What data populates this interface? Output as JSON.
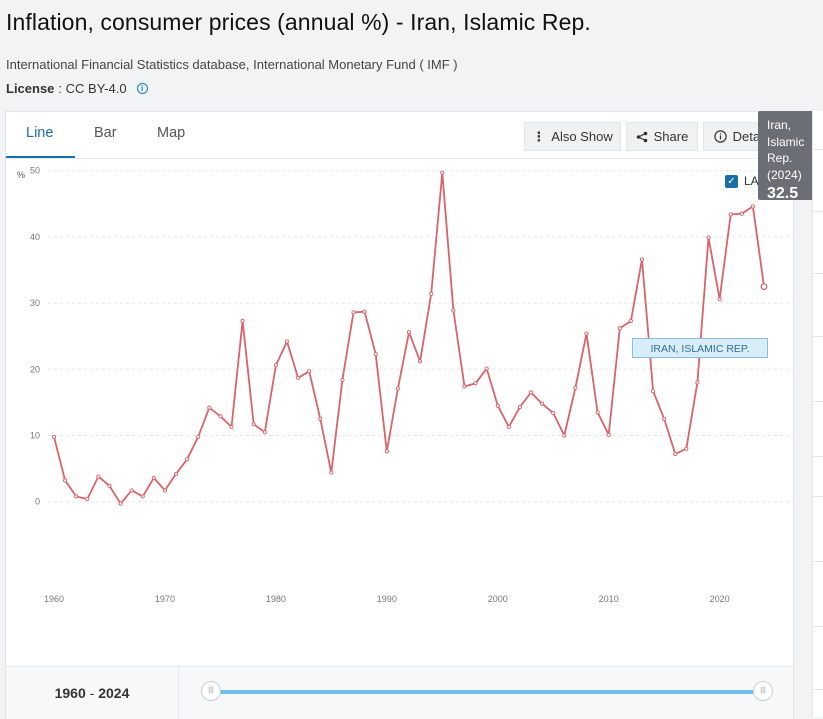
{
  "page": {
    "title": "Inflation, consumer prices (annual %) - Iran, Islamic Rep.",
    "source": "International Financial Statistics database, International Monetary Fund ( IMF )",
    "license_label": "License",
    "license_value": ": CC BY-4.0"
  },
  "tabs": [
    {
      "label": "Line",
      "active": true
    },
    {
      "label": "Bar",
      "active": false
    },
    {
      "label": "Map",
      "active": false
    }
  ],
  "toolbar": {
    "also_show": "Also Show",
    "share": "Share",
    "details": "Details"
  },
  "label_toggle": {
    "label": "LABEL",
    "checked": true
  },
  "tooltip": {
    "name_lines": [
      "Iran,",
      "Islamic",
      "Rep.",
      "(2024)"
    ],
    "value": "32.5"
  },
  "series_tag": "IRAN, ISLAMIC REP.",
  "range": {
    "from": "1960",
    "separator": " - ",
    "to": "2024"
  },
  "colors": {
    "line": "#d9636a",
    "accent": "#1a6fa8",
    "slider": "#6ec0ea"
  },
  "chart_data": {
    "type": "line",
    "ylabel": "%",
    "ylim": [
      0,
      50
    ],
    "yticks": [
      0,
      10,
      20,
      30,
      40,
      50
    ],
    "xticks": [
      1960,
      1970,
      1980,
      1990,
      2000,
      2010,
      2020
    ],
    "grid": true,
    "series": [
      {
        "name": "IRAN, ISLAMIC REP.",
        "x": [
          1960,
          1961,
          1962,
          1963,
          1964,
          1965,
          1966,
          1967,
          1968,
          1969,
          1970,
          1971,
          1972,
          1973,
          1974,
          1975,
          1976,
          1977,
          1978,
          1979,
          1980,
          1981,
          1982,
          1983,
          1984,
          1985,
          1986,
          1987,
          1988,
          1989,
          1990,
          1991,
          1992,
          1993,
          1994,
          1995,
          1996,
          1997,
          1998,
          1999,
          2000,
          2001,
          2002,
          2003,
          2004,
          2005,
          2006,
          2007,
          2008,
          2009,
          2010,
          2011,
          2012,
          2013,
          2014,
          2015,
          2016,
          2017,
          2018,
          2019,
          2020,
          2021,
          2022,
          2023,
          2024
        ],
        "values": [
          9.8,
          3.2,
          0.8,
          0.4,
          3.8,
          2.4,
          -0.3,
          1.7,
          0.8,
          3.6,
          1.7,
          4.2,
          6.4,
          9.8,
          14.2,
          12.9,
          11.3,
          27.3,
          11.7,
          10.5,
          20.6,
          24.2,
          18.7,
          19.7,
          12.5,
          4.4,
          18.4,
          28.6,
          28.7,
          22.3,
          7.6,
          17.1,
          25.6,
          21.2,
          31.4,
          49.7,
          28.9,
          17.4,
          17.9,
          20.1,
          14.5,
          11.3,
          14.3,
          16.5,
          14.8,
          13.4,
          10.0,
          17.2,
          25.4,
          13.5,
          10.1,
          26.2,
          27.3,
          36.6,
          16.7,
          12.5,
          7.2,
          8.0,
          18.0,
          39.9,
          30.6,
          43.4,
          43.5,
          44.6,
          32.5
        ]
      }
    ]
  }
}
